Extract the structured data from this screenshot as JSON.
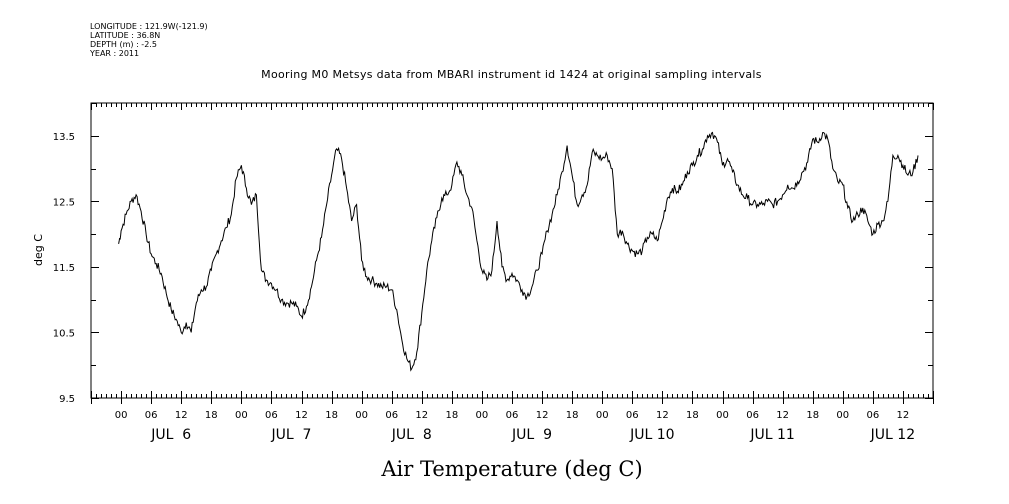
{
  "meta": {
    "longitude": "LONGITUDE : 121.9W(-121.9)",
    "latitude": "LATITUDE : 36.8N",
    "depth": "DEPTH (m) : -2.5",
    "year": "YEAR : 2011"
  },
  "chart_data": {
    "type": "line",
    "title": "Mooring M0 Metsys data from MBARI instrument id 1424 at original sampling intervals",
    "xlabel": "Air Temperature (deg C)",
    "ylabel": "deg C",
    "ylim": [
      9.5,
      14.0
    ],
    "xlim_hours": [
      -6,
      162
    ],
    "y_ticks": [
      "9.5",
      "10.5",
      "11.5",
      "12.5",
      "13.5"
    ],
    "y_tick_values": [
      9.5,
      10.5,
      11.5,
      12.5,
      13.5
    ],
    "hour_labels": [
      "00",
      "06",
      "12",
      "18"
    ],
    "day_labels": [
      "JUL  6",
      "JUL  7",
      "JUL  8",
      "JUL  9",
      "JUL 10",
      "JUL 11",
      "JUL 12"
    ],
    "grid": false,
    "series": [
      {
        "points": [
          [
            -0.5,
            11.85
          ],
          [
            0,
            12.05
          ],
          [
            1,
            12.3
          ],
          [
            2,
            12.5
          ],
          [
            3,
            12.6
          ],
          [
            4,
            12.35
          ],
          [
            5,
            12.0
          ],
          [
            6,
            11.7
          ],
          [
            7,
            11.55
          ],
          [
            8,
            11.4
          ],
          [
            9,
            11.1
          ],
          [
            10,
            10.85
          ],
          [
            11,
            10.7
          ],
          [
            12,
            10.5
          ],
          [
            13,
            10.65
          ],
          [
            14,
            10.5
          ],
          [
            15,
            10.95
          ],
          [
            16,
            11.15
          ],
          [
            17,
            11.2
          ],
          [
            18,
            11.45
          ],
          [
            19,
            11.7
          ],
          [
            20,
            11.9
          ],
          [
            21,
            12.1
          ],
          [
            22,
            12.3
          ],
          [
            23,
            12.85
          ],
          [
            24,
            13.05
          ],
          [
            25,
            12.7
          ],
          [
            26,
            12.45
          ],
          [
            27,
            12.6
          ],
          [
            28,
            11.45
          ],
          [
            29,
            11.3
          ],
          [
            30,
            11.25
          ],
          [
            31,
            11.15
          ],
          [
            32,
            11.0
          ],
          [
            33,
            10.95
          ],
          [
            34,
            10.95
          ],
          [
            35,
            10.9
          ],
          [
            36,
            10.75
          ],
          [
            37,
            10.9
          ],
          [
            38,
            11.2
          ],
          [
            39,
            11.6
          ],
          [
            40,
            11.95
          ],
          [
            41,
            12.45
          ],
          [
            42,
            12.9
          ],
          [
            43,
            13.3
          ],
          [
            44,
            13.15
          ],
          [
            45,
            12.7
          ],
          [
            46,
            12.2
          ],
          [
            47,
            12.45
          ],
          [
            48,
            11.6
          ],
          [
            49,
            11.35
          ],
          [
            50,
            11.3
          ],
          [
            51,
            11.25
          ],
          [
            52,
            11.2
          ],
          [
            53,
            11.2
          ],
          [
            54,
            11.15
          ],
          [
            55,
            10.85
          ],
          [
            56,
            10.4
          ],
          [
            57,
            10.1
          ],
          [
            58,
            9.95
          ],
          [
            59,
            10.2
          ],
          [
            60,
            10.8
          ],
          [
            61,
            11.45
          ],
          [
            62,
            11.9
          ],
          [
            63,
            12.25
          ],
          [
            64,
            12.55
          ],
          [
            65,
            12.6
          ],
          [
            66,
            12.75
          ],
          [
            67,
            13.1
          ],
          [
            68,
            12.9
          ],
          [
            69,
            12.6
          ],
          [
            70,
            12.4
          ],
          [
            71,
            11.9
          ],
          [
            72,
            11.45
          ],
          [
            73,
            11.3
          ],
          [
            74,
            11.45
          ],
          [
            75,
            12.2
          ],
          [
            76,
            11.5
          ],
          [
            77,
            11.3
          ],
          [
            78,
            11.4
          ],
          [
            79,
            11.3
          ],
          [
            80,
            11.15
          ],
          [
            81,
            11.05
          ],
          [
            82,
            11.2
          ],
          [
            83,
            11.45
          ],
          [
            84,
            11.7
          ],
          [
            85,
            12.05
          ],
          [
            86,
            12.3
          ],
          [
            87,
            12.6
          ],
          [
            88,
            12.95
          ],
          [
            89,
            13.35
          ],
          [
            90,
            12.9
          ],
          [
            91,
            12.45
          ],
          [
            92,
            12.6
          ],
          [
            93,
            12.75
          ],
          [
            94,
            13.25
          ],
          [
            95,
            13.2
          ],
          [
            96,
            13.15
          ],
          [
            97,
            13.2
          ],
          [
            98,
            13.0
          ],
          [
            99,
            12.0
          ],
          [
            100,
            12.05
          ],
          [
            101,
            11.85
          ],
          [
            102,
            11.75
          ],
          [
            103,
            11.7
          ],
          [
            104,
            11.75
          ],
          [
            105,
            11.95
          ],
          [
            106,
            12.0
          ],
          [
            107,
            11.9
          ],
          [
            108,
            12.2
          ],
          [
            109,
            12.55
          ],
          [
            110,
            12.7
          ],
          [
            111,
            12.65
          ],
          [
            112,
            12.75
          ],
          [
            113,
            12.95
          ],
          [
            114,
            13.05
          ],
          [
            115,
            13.2
          ],
          [
            116,
            13.3
          ],
          [
            117,
            13.5
          ],
          [
            118,
            13.55
          ],
          [
            119,
            13.4
          ],
          [
            120,
            13.05
          ],
          [
            121,
            13.15
          ],
          [
            122,
            12.95
          ],
          [
            123,
            12.75
          ],
          [
            124,
            12.6
          ],
          [
            125,
            12.55
          ],
          [
            126,
            12.45
          ],
          [
            127,
            12.45
          ],
          [
            128,
            12.45
          ],
          [
            129,
            12.5
          ],
          [
            130,
            12.45
          ],
          [
            131,
            12.5
          ],
          [
            132,
            12.6
          ],
          [
            133,
            12.75
          ],
          [
            134,
            12.7
          ],
          [
            135,
            12.8
          ],
          [
            136,
            12.95
          ],
          [
            137,
            13.1
          ],
          [
            138,
            13.45
          ],
          [
            139,
            13.4
          ],
          [
            140,
            13.55
          ],
          [
            141,
            13.45
          ],
          [
            142,
            13.0
          ],
          [
            143,
            12.8
          ],
          [
            144,
            12.75
          ],
          [
            145,
            12.4
          ],
          [
            146,
            12.2
          ],
          [
            147,
            12.3
          ],
          [
            148,
            12.4
          ],
          [
            149,
            12.2
          ],
          [
            150,
            12.0
          ],
          [
            151,
            12.15
          ],
          [
            152,
            12.2
          ],
          [
            153,
            12.5
          ],
          [
            154,
            13.2
          ],
          [
            155,
            13.2
          ],
          [
            156,
            13.05
          ],
          [
            157,
            12.9
          ],
          [
            158,
            12.95
          ],
          [
            159,
            13.2
          ]
        ]
      }
    ]
  }
}
